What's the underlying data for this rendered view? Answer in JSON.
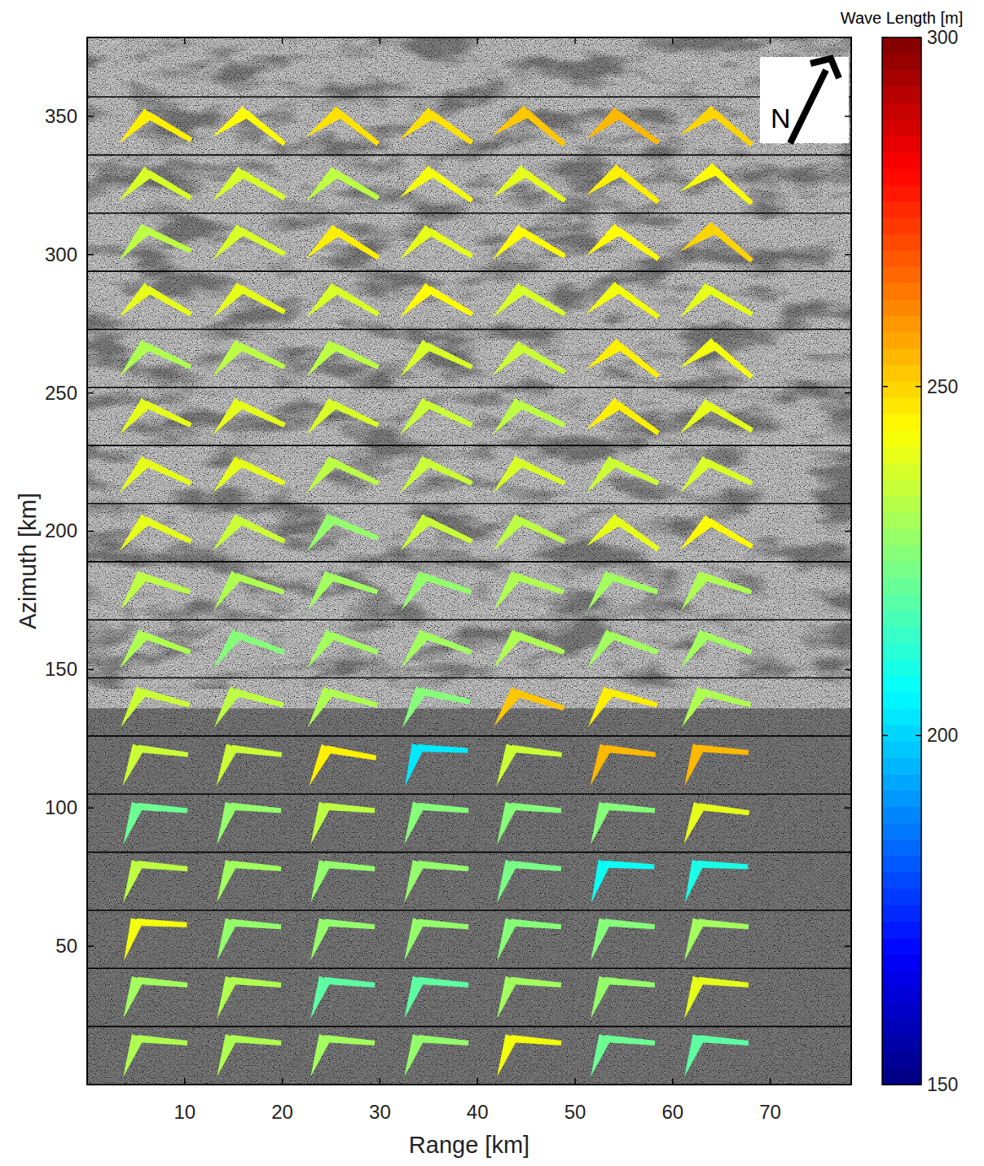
{
  "chart_data": {
    "type": "vector_field",
    "x_label": "Range [km]",
    "y_label": "Azimuth [km]",
    "xlim": [
      0,
      78.3
    ],
    "ylim": [
      0,
      378.5
    ],
    "xticks": [
      10,
      20,
      30,
      40,
      50,
      60,
      70
    ],
    "yticks": [
      50,
      100,
      150,
      200,
      250,
      300,
      350
    ],
    "x": [
      7,
      16.6,
      26.2,
      35.8,
      45.3,
      54.9,
      64.5
    ],
    "series": [
      {
        "azimuth": 10.5,
        "values": [
          232,
          232,
          230,
          228,
          242,
          222,
          220
        ],
        "direction": [
          -5,
          -5,
          -5,
          -5,
          -5,
          -5,
          -5
        ]
      },
      {
        "azimuth": 31.5,
        "values": [
          230,
          232,
          220,
          220,
          230,
          228,
          240
        ],
        "direction": [
          -5,
          -5,
          -5,
          -5,
          -5,
          -5,
          -5
        ]
      },
      {
        "azimuth": 52.5,
        "values": [
          242,
          228,
          228,
          228,
          226,
          226,
          230
        ],
        "direction": [
          -3,
          -5,
          -5,
          -5,
          -5,
          -5,
          -5
        ]
      },
      {
        "azimuth": 73.5,
        "values": [
          234,
          230,
          228,
          228,
          224,
          208,
          210
        ],
        "direction": [
          -5,
          -5,
          -5,
          -5,
          -5,
          -3,
          -3
        ]
      },
      {
        "azimuth": 94.5,
        "values": [
          222,
          228,
          234,
          226,
          226,
          226,
          240
        ],
        "direction": [
          -5,
          -5,
          -5,
          -5,
          -5,
          -5,
          -7
        ]
      },
      {
        "azimuth": 115.5,
        "values": [
          236,
          236,
          246,
          203,
          236,
          254,
          254
        ],
        "direction": [
          -7,
          -7,
          -10,
          -3,
          -7,
          -7,
          -5
        ]
      },
      {
        "azimuth": 136.5,
        "values": [
          236,
          234,
          232,
          226,
          252,
          246,
          232
        ],
        "direction": [
          -15,
          -15,
          -15,
          -12,
          -18,
          -15,
          -15
        ]
      },
      {
        "azimuth": 157.5,
        "values": [
          232,
          226,
          230,
          230,
          232,
          230,
          230
        ],
        "direction": [
          -20,
          -20,
          -20,
          -20,
          -20,
          -20,
          -20
        ]
      },
      {
        "azimuth": 178.5,
        "values": [
          234,
          232,
          230,
          228,
          232,
          230,
          232
        ],
        "direction": [
          -18,
          -18,
          -18,
          -18,
          -18,
          -18,
          -18
        ]
      },
      {
        "azimuth": 199.5,
        "values": [
          240,
          236,
          228,
          236,
          234,
          240,
          244
        ],
        "direction": [
          -25,
          -25,
          -22,
          -25,
          -25,
          -35,
          -30
        ]
      },
      {
        "azimuth": 220.5,
        "values": [
          240,
          240,
          234,
          236,
          238,
          236,
          238
        ],
        "direction": [
          -25,
          -25,
          -25,
          -25,
          -25,
          -25,
          -25
        ]
      },
      {
        "azimuth": 241.5,
        "values": [
          240,
          240,
          238,
          236,
          234,
          246,
          240
        ],
        "direction": [
          -25,
          -25,
          -25,
          -25,
          -25,
          -35,
          -30
        ]
      },
      {
        "azimuth": 262.5,
        "values": [
          232,
          234,
          234,
          238,
          236,
          246,
          242
        ],
        "direction": [
          -25,
          -25,
          -25,
          -25,
          -30,
          -38,
          -40
        ]
      },
      {
        "azimuth": 283.5,
        "values": [
          240,
          240,
          238,
          244,
          238,
          242,
          240
        ],
        "direction": [
          -30,
          -28,
          -30,
          -30,
          -30,
          -35,
          -30
        ]
      },
      {
        "azimuth": 304.5,
        "values": [
          234,
          238,
          246,
          240,
          244,
          244,
          250
        ],
        "direction": [
          -25,
          -28,
          -32,
          -30,
          -30,
          -35,
          -40
        ]
      },
      {
        "azimuth": 325.5,
        "values": [
          238,
          238,
          234,
          242,
          240,
          246,
          244
        ],
        "direction": [
          -30,
          -30,
          -30,
          -35,
          -35,
          -38,
          -42
        ]
      },
      {
        "azimuth": 346.5,
        "values": [
          246,
          244,
          248,
          248,
          252,
          254,
          250
        ],
        "direction": [
          -30,
          -38,
          -38,
          -35,
          -40,
          -35,
          -40
        ]
      }
    ],
    "colorbar": {
      "label": "Wave Length [m]",
      "range": [
        150,
        300
      ],
      "ticks": [
        150,
        200,
        250,
        300
      ]
    },
    "north_label": "N"
  }
}
